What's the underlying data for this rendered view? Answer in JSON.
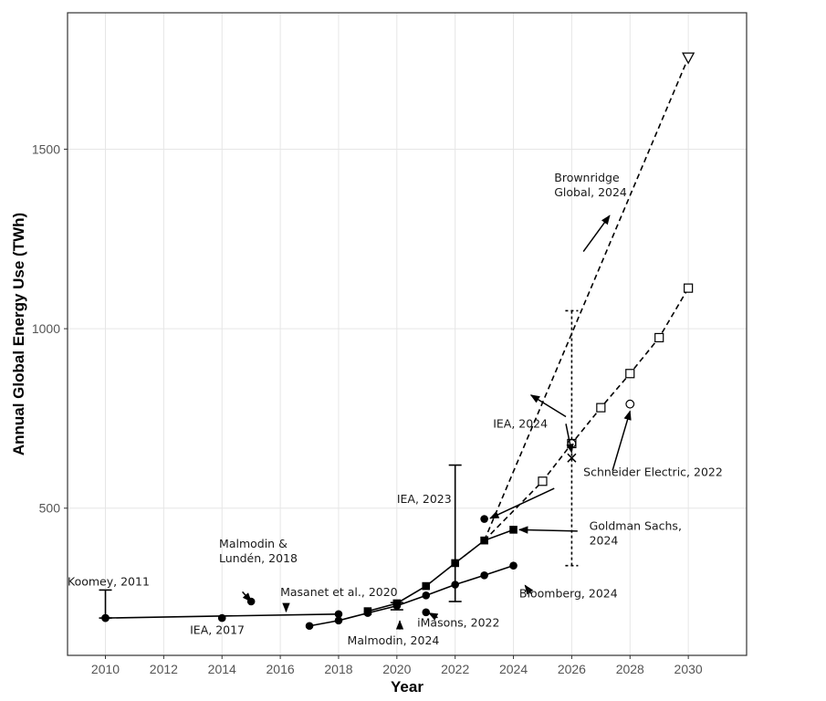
{
  "chart_data": {
    "type": "line",
    "xlabel": "Year",
    "ylabel": "Annual Global Energy Use (TWh)",
    "xlim": [
      2008.7,
      2032
    ],
    "ylim": [
      90,
      1880
    ],
    "x_ticks": [
      2010,
      2012,
      2014,
      2016,
      2018,
      2020,
      2022,
      2024,
      2026,
      2028,
      2030
    ],
    "y_ticks": [
      500,
      1000,
      1500
    ],
    "grid": true,
    "series": [
      {
        "id": "masanet",
        "marker": "filled-circle",
        "line": "solid",
        "points": [
          [
            2010,
            194
          ],
          [
            2018,
            205
          ]
        ]
      },
      {
        "id": "malmodin2024",
        "marker": "filled-circle",
        "line": "solid",
        "points": [
          [
            2017,
            172
          ],
          [
            2018,
            187
          ],
          [
            2019,
            208
          ],
          [
            2020,
            228
          ],
          [
            2021,
            257
          ],
          [
            2022,
            287
          ],
          [
            2023,
            313
          ],
          [
            2024,
            340
          ]
        ]
      },
      {
        "id": "iea2023",
        "marker": "filled-square",
        "line": "solid",
        "points": [
          [
            2019,
            213
          ],
          [
            2020,
            235
          ],
          [
            2021,
            283
          ],
          [
            2022,
            347
          ],
          [
            2023,
            410
          ],
          [
            2024,
            440
          ]
        ]
      },
      {
        "id": "schneider",
        "marker": "open-square",
        "line": "dashed",
        "points": [
          [
            2023,
            410
          ],
          [
            2025,
            575
          ],
          [
            2026,
            680
          ],
          [
            2027,
            780
          ],
          [
            2028,
            875
          ],
          [
            2029,
            975
          ],
          [
            2030,
            1113
          ]
        ]
      },
      {
        "id": "brownridge",
        "marker": "open-triangle",
        "line": "dashed",
        "points": [
          [
            2023,
            410
          ],
          [
            2030,
            1755
          ]
        ]
      }
    ],
    "single_points": [
      {
        "id": "koomey",
        "x": 2010,
        "y": 194,
        "marker": "filled-circle"
      },
      {
        "id": "iea2017",
        "x": 2014,
        "y": 194,
        "marker": "filled-circle"
      },
      {
        "id": "malmodin2018",
        "x": 2015,
        "y": 240,
        "marker": "filled-circle"
      },
      {
        "id": "imasons",
        "x": 2021,
        "y": 210,
        "marker": "filled-circle"
      },
      {
        "id": "goldman",
        "x": 2023,
        "y": 470,
        "marker": "filled-circle"
      },
      {
        "id": "iea2024",
        "x": 2026,
        "y": 640,
        "marker": "x-cross"
      },
      {
        "id": "iea2024_center",
        "x": 2026,
        "y": 680,
        "marker": "open-circle"
      },
      {
        "id": "open_circle_2028",
        "x": 2028,
        "y": 790,
        "marker": "open-circle"
      }
    ],
    "error_bars": [
      {
        "id": "koomey",
        "x": 2010,
        "low": 194,
        "high": 272,
        "line": "solid"
      },
      {
        "id": "malmodin2024",
        "x": 2020,
        "low": 217,
        "high": 237,
        "line": "solid"
      },
      {
        "id": "iea2023",
        "x": 2022,
        "low": 240,
        "high": 620,
        "line": "solid"
      },
      {
        "id": "iea2024",
        "x": 2026,
        "low": 340,
        "high": 1050,
        "line": "dotted"
      }
    ],
    "annotations": [
      {
        "lines": [
          "Koomey, 2011"
        ],
        "x": 2008.7,
        "y": 285,
        "anchor": "start"
      },
      {
        "lines": [
          "Malmodin &",
          "Lundén, 2018"
        ],
        "x": 2013.9,
        "y": 390,
        "anchor": "start"
      },
      {
        "lines": [
          "IEA, 2017"
        ],
        "x": 2012.9,
        "y": 150,
        "anchor": "start"
      },
      {
        "lines": [
          "Masanet et al., 2020"
        ],
        "x": 2016.0,
        "y": 255,
        "anchor": "start"
      },
      {
        "lines": [
          "Malmodin, 2024"
        ],
        "x": 2018.3,
        "y": 120,
        "anchor": "start"
      },
      {
        "lines": [
          "iMasons, 2022"
        ],
        "x": 2020.7,
        "y": 170,
        "anchor": "start"
      },
      {
        "lines": [
          "IEA, 2023"
        ],
        "x": 2020.0,
        "y": 515,
        "anchor": "start"
      },
      {
        "lines": [
          "Bloomberg, 2024"
        ],
        "x": 2024.2,
        "y": 252,
        "anchor": "start"
      },
      {
        "lines": [
          "Goldman Sachs,",
          "2024"
        ],
        "x": 2026.6,
        "y": 440,
        "anchor": "start"
      },
      {
        "lines": [
          "Schneider Electric, 2022"
        ],
        "x": 2026.4,
        "y": 590,
        "anchor": "start"
      },
      {
        "lines": [
          "IEA, 2024"
        ],
        "x": 2023.3,
        "y": 725,
        "anchor": "start"
      },
      {
        "lines": [
          "Brownridge",
          "Global, 2024"
        ],
        "x": 2025.4,
        "y": 1410,
        "anchor": "start"
      }
    ],
    "arrows": [
      {
        "from": [
          2014.7,
          267
        ],
        "to": [
          2015.0,
          240
        ]
      },
      {
        "from": [
          2016.2,
          232
        ],
        "to": [
          2016.2,
          212
        ]
      },
      {
        "from": [
          2020.1,
          162
        ],
        "to": [
          2020.1,
          186
        ]
      },
      {
        "from": [
          2021.4,
          195
        ],
        "to": [
          2021.1,
          208
        ]
      },
      {
        "from": [
          2024.6,
          262
        ],
        "to": [
          2024.4,
          285
        ]
      },
      {
        "from": [
          2026.2,
          436
        ],
        "to": [
          2024.2,
          440
        ]
      },
      {
        "from": [
          2025.4,
          555
        ],
        "to": [
          2023.2,
          472
        ]
      },
      {
        "from": [
          2027.4,
          605
        ],
        "to": [
          2028.0,
          770
        ]
      },
      {
        "from": [
          2025.8,
          735
        ],
        "to": [
          2026.0,
          655
        ]
      },
      {
        "from": [
          2025.8,
          755
        ],
        "to": [
          2024.6,
          815
        ]
      },
      {
        "from": [
          2026.4,
          1215
        ],
        "to": [
          2027.3,
          1315
        ]
      }
    ]
  }
}
